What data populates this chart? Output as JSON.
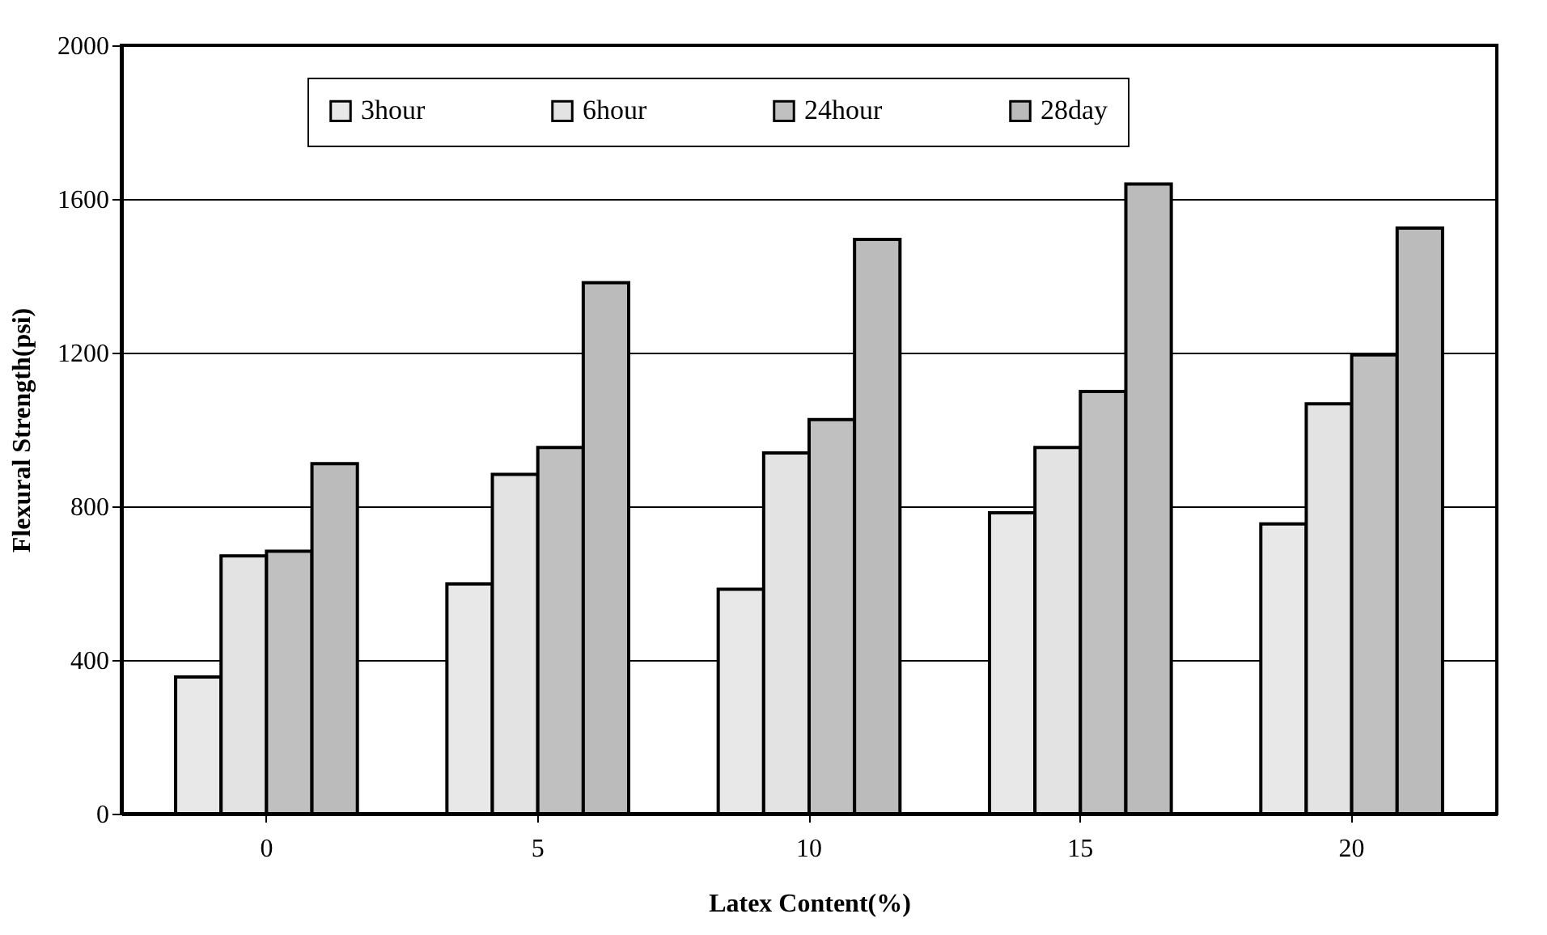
{
  "chart_data": {
    "type": "bar",
    "xlabel": "Latex Content(%)",
    "ylabel": "Flexural Strength(psi)",
    "categories": [
      "0",
      "5",
      "10",
      "15",
      "20"
    ],
    "series": [
      {
        "name": "3hour",
        "color": "#e8e8e8",
        "values": [
          356,
          598,
          584,
          783,
          754
        ]
      },
      {
        "name": "6hour",
        "color": "#e3e3e3",
        "values": [
          671,
          883,
          939,
          953,
          1067
        ]
      },
      {
        "name": "24hour",
        "color": "#c0c0c0",
        "values": [
          683,
          953,
          1026,
          1099,
          1194
        ]
      },
      {
        "name": "28day",
        "color": "#bbbbbb",
        "values": [
          911,
          1382,
          1495,
          1639,
          1524
        ]
      }
    ],
    "ylim": [
      0,
      2000
    ],
    "yticks": [
      0,
      400,
      800,
      1200,
      1600,
      2000
    ],
    "grid": "y",
    "legend": "top"
  }
}
